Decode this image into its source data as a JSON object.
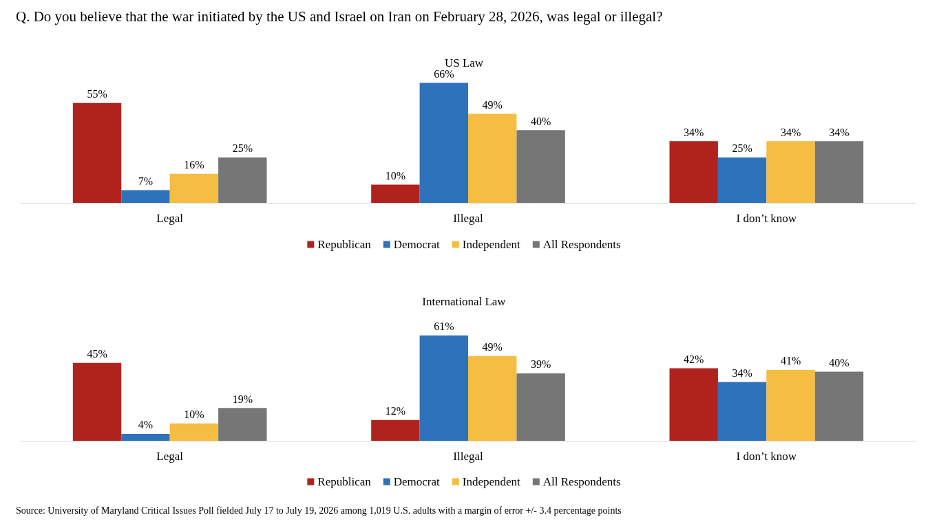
{
  "chart_data": [
    {
      "type": "bar",
      "title": "Q. Do you believe that the war initiated by the US and Israel on Iran on February 28, 2026, was legal or illegal?",
      "subtitle": "US Law",
      "categories": [
        "Legal",
        "Illegal",
        "I don’t know"
      ],
      "series": [
        {
          "name": "Republican",
          "color": "#b0231d",
          "values": [
            55,
            10,
            34
          ],
          "value_labels": [
            "55%",
            "10%",
            "34%"
          ]
        },
        {
          "name": "Democrat",
          "color": "#2e72bb",
          "values": [
            7,
            66,
            25
          ],
          "value_labels": [
            "7%",
            "66%",
            "25%"
          ]
        },
        {
          "name": "Independent",
          "color": "#f5bd42",
          "values": [
            16,
            49,
            34
          ],
          "value_labels": [
            "16%",
            "49%",
            "34%"
          ]
        },
        {
          "name": "All Respondents",
          "color": "#767676",
          "values": [
            25,
            40,
            34
          ],
          "value_labels": [
            "25%",
            "40%",
            "34%"
          ]
        }
      ],
      "legend": "bottom",
      "grid": false,
      "tick_labels": "x"
    },
    {
      "type": "bar",
      "title": "International Law",
      "categories": [
        "Legal",
        "Illegal",
        "I don’t know"
      ],
      "series": [
        {
          "name": "Republican",
          "color": "#b0231d",
          "values": [
            45,
            12,
            42
          ],
          "value_labels": [
            "45%",
            "12%",
            "42%"
          ]
        },
        {
          "name": "Democrat",
          "color": "#2e72bb",
          "values": [
            4,
            61,
            34
          ],
          "value_labels": [
            "4%",
            "61%",
            "34%"
          ]
        },
        {
          "name": "Independent",
          "color": "#f5bd42",
          "values": [
            10,
            49,
            41
          ],
          "value_labels": [
            "10%",
            "49%",
            "41%"
          ]
        },
        {
          "name": "All Respondents",
          "color": "#767676",
          "values": [
            19,
            39,
            40
          ],
          "value_labels": [
            "19%",
            "39%",
            "40%"
          ]
        }
      ],
      "legend": "bottom",
      "grid": false,
      "tick_labels": "x",
      "annotations": [
        "Source: University of Maryland Critical Issues Poll fielded July 17 to July 19, 2026 among 1,019 U.S. adults with a margin of error +/- 3.4 percentage points"
      ]
    }
  ]
}
